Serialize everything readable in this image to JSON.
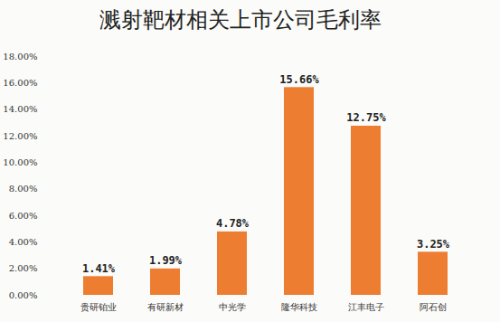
{
  "chart_data": {
    "type": "bar",
    "title": "溅射靶材相关上市公司毛利率",
    "categories": [
      "贵研铂业",
      "有研新材",
      "中光学",
      "隆华科技",
      "江丰电子",
      "阿石创"
    ],
    "values": [
      1.41,
      1.99,
      4.78,
      15.66,
      12.75,
      3.25
    ],
    "value_labels": [
      "1.41%",
      "1.99%",
      "4.78%",
      "15.66%",
      "12.75%",
      "3.25%"
    ],
    "color": "#ed7d31",
    "ylim": [
      0,
      18
    ],
    "yticks": [
      {
        "value": 0,
        "label": "0.00%"
      },
      {
        "value": 2,
        "label": "2.00%"
      },
      {
        "value": 4,
        "label": "4.00%"
      },
      {
        "value": 6,
        "label": "6.00%"
      },
      {
        "value": 8,
        "label": "8.00%"
      },
      {
        "value": 10,
        "label": "10.00%"
      },
      {
        "value": 12,
        "label": "12.00%"
      },
      {
        "value": 14,
        "label": "14.00%"
      },
      {
        "value": 16,
        "label": "16.00%"
      },
      {
        "value": 18,
        "label": "18.00%"
      }
    ],
    "grid": false,
    "data_labels": true
  }
}
